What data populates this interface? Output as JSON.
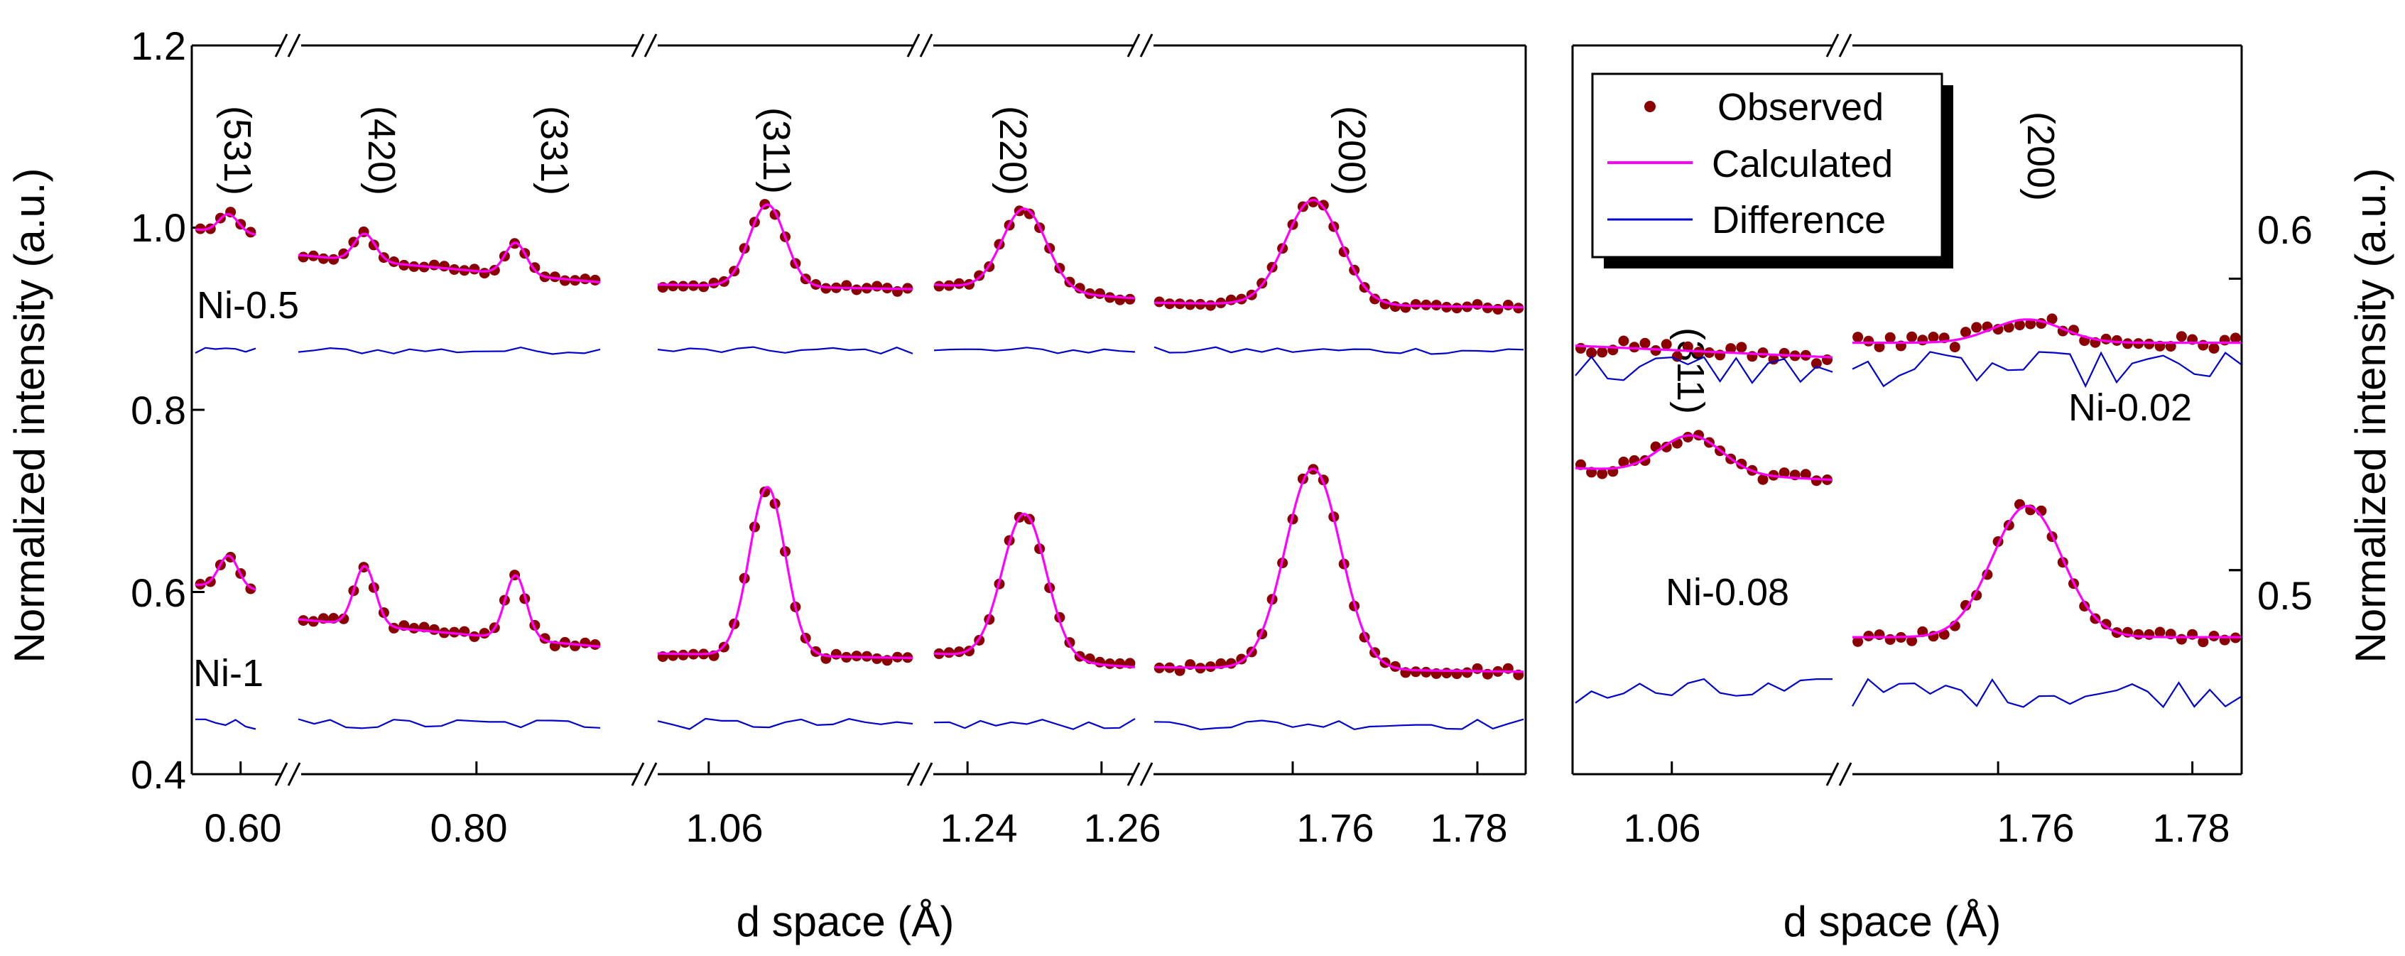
{
  "chart_data": {
    "type": "scatter",
    "colors": {
      "observed": "#8B0000",
      "calculated": "#FF00FF",
      "difference": "#0000CD",
      "axes": "#000000"
    },
    "left_panel": {
      "ylabel": "Normalized intensity (a.u.)",
      "xlabel": "d space (Å)",
      "ylim": [
        0.4,
        1.2
      ],
      "yticks": [
        "0.4",
        "0.6",
        "0.8",
        "1.0",
        "1.2"
      ],
      "segments": [
        {
          "xlim": [
            0.585,
            0.605
          ],
          "xticks": [
            "0.60"
          ],
          "xtick_values": [
            0.6
          ],
          "peaks": [
            {
              "label": "(531)",
              "d": 0.595
            }
          ]
        },
        {
          "xlim": [
            0.62,
            0.925
          ],
          "xticks": [
            "0.80"
          ],
          "xtick_values": [
            0.8
          ],
          "peaks": [
            {
              "label": "(420)",
              "d": 0.715
            },
            {
              "label": "(331)",
              "d": 0.875
            }
          ]
        },
        {
          "xlim": [
            1.05,
            1.1
          ],
          "xticks": [
            "1.06"
          ],
          "xtick_values": [
            1.06
          ],
          "peaks": [
            {
              "label": "(311)",
              "d": 1.069
            }
          ]
        },
        {
          "xlim": [
            1.235,
            1.265
          ],
          "xticks": [
            "1.24",
            "1.26"
          ],
          "xtick_values": [
            1.24,
            1.26
          ],
          "peaks": [
            {
              "label": "(220)",
              "d": 1.2475
            }
          ]
        },
        {
          "xlim": [
            1.745,
            1.785
          ],
          "xticks": [
            "1.76",
            "1.78"
          ],
          "xtick_values": [
            1.76,
            1.78
          ],
          "peaks": [
            {
              "label": "(200)",
              "d": 1.7655
            }
          ]
        }
      ],
      "series": [
        {
          "sample": "Ni-0.5",
          "label": "Ni-0.5",
          "baseline": [
            0.995,
            0.955,
            0.935,
            0.93,
            0.915,
            0.885
          ],
          "peak_height": [
            0.02,
            0.03,
            0.035,
            0.09,
            0.09,
            0.115
          ],
          "difference_level": 0.865
        },
        {
          "sample": "Ni-1",
          "label": "Ni-1",
          "baseline": [
            0.605,
            0.555,
            0.53,
            0.525,
            0.515,
            0.485
          ],
          "peak_height": [
            0.035,
            0.065,
            0.07,
            0.185,
            0.16,
            0.22
          ],
          "difference_level": 0.455
        }
      ]
    },
    "right_panel": {
      "ylabel": "Normalized intensity (a.u.)",
      "xlabel": "d space (Å)",
      "ylim": [
        0.43,
        0.68
      ],
      "yticks": [
        "0.5",
        "0.6"
      ],
      "ytick_values": [
        0.5,
        0.6
      ],
      "segments": [
        {
          "xlim": [
            1.045,
            1.085
          ],
          "xticks": [
            "1.06"
          ],
          "xtick_values": [
            1.06
          ],
          "peaks": [
            {
              "label": "(311)",
              "d": 1.0645
            }
          ]
        },
        {
          "xlim": [
            1.745,
            1.785
          ],
          "xticks": [
            "1.76",
            "1.78"
          ],
          "xtick_values": [
            1.76,
            1.78
          ],
          "peaks": [
            {
              "label": "(200)",
              "d": 1.7655
            }
          ]
        }
      ],
      "series": [
        {
          "sample": "Ni-0.08",
          "label": "Ni-0.08",
          "baseline": [
            0.533,
            0.477
          ],
          "peak_height": [
            0.013,
            0.045
          ],
          "difference_level": 0.458
        },
        {
          "sample": "Ni-0.02",
          "label": "Ni-0.02",
          "baseline": [
            0.575,
            0.578
          ],
          "peak_height": [
            0.0,
            0.008
          ],
          "difference_level": 0.569
        }
      ]
    },
    "legend": {
      "position": "upper-left of right panel",
      "entries": [
        {
          "label": "Observed",
          "style": "dot",
          "color": "#8B0000"
        },
        {
          "label": "Calculated",
          "style": "line",
          "color": "#FF00FF"
        },
        {
          "label": "Difference",
          "style": "line",
          "color": "#0000CD"
        }
      ]
    }
  }
}
